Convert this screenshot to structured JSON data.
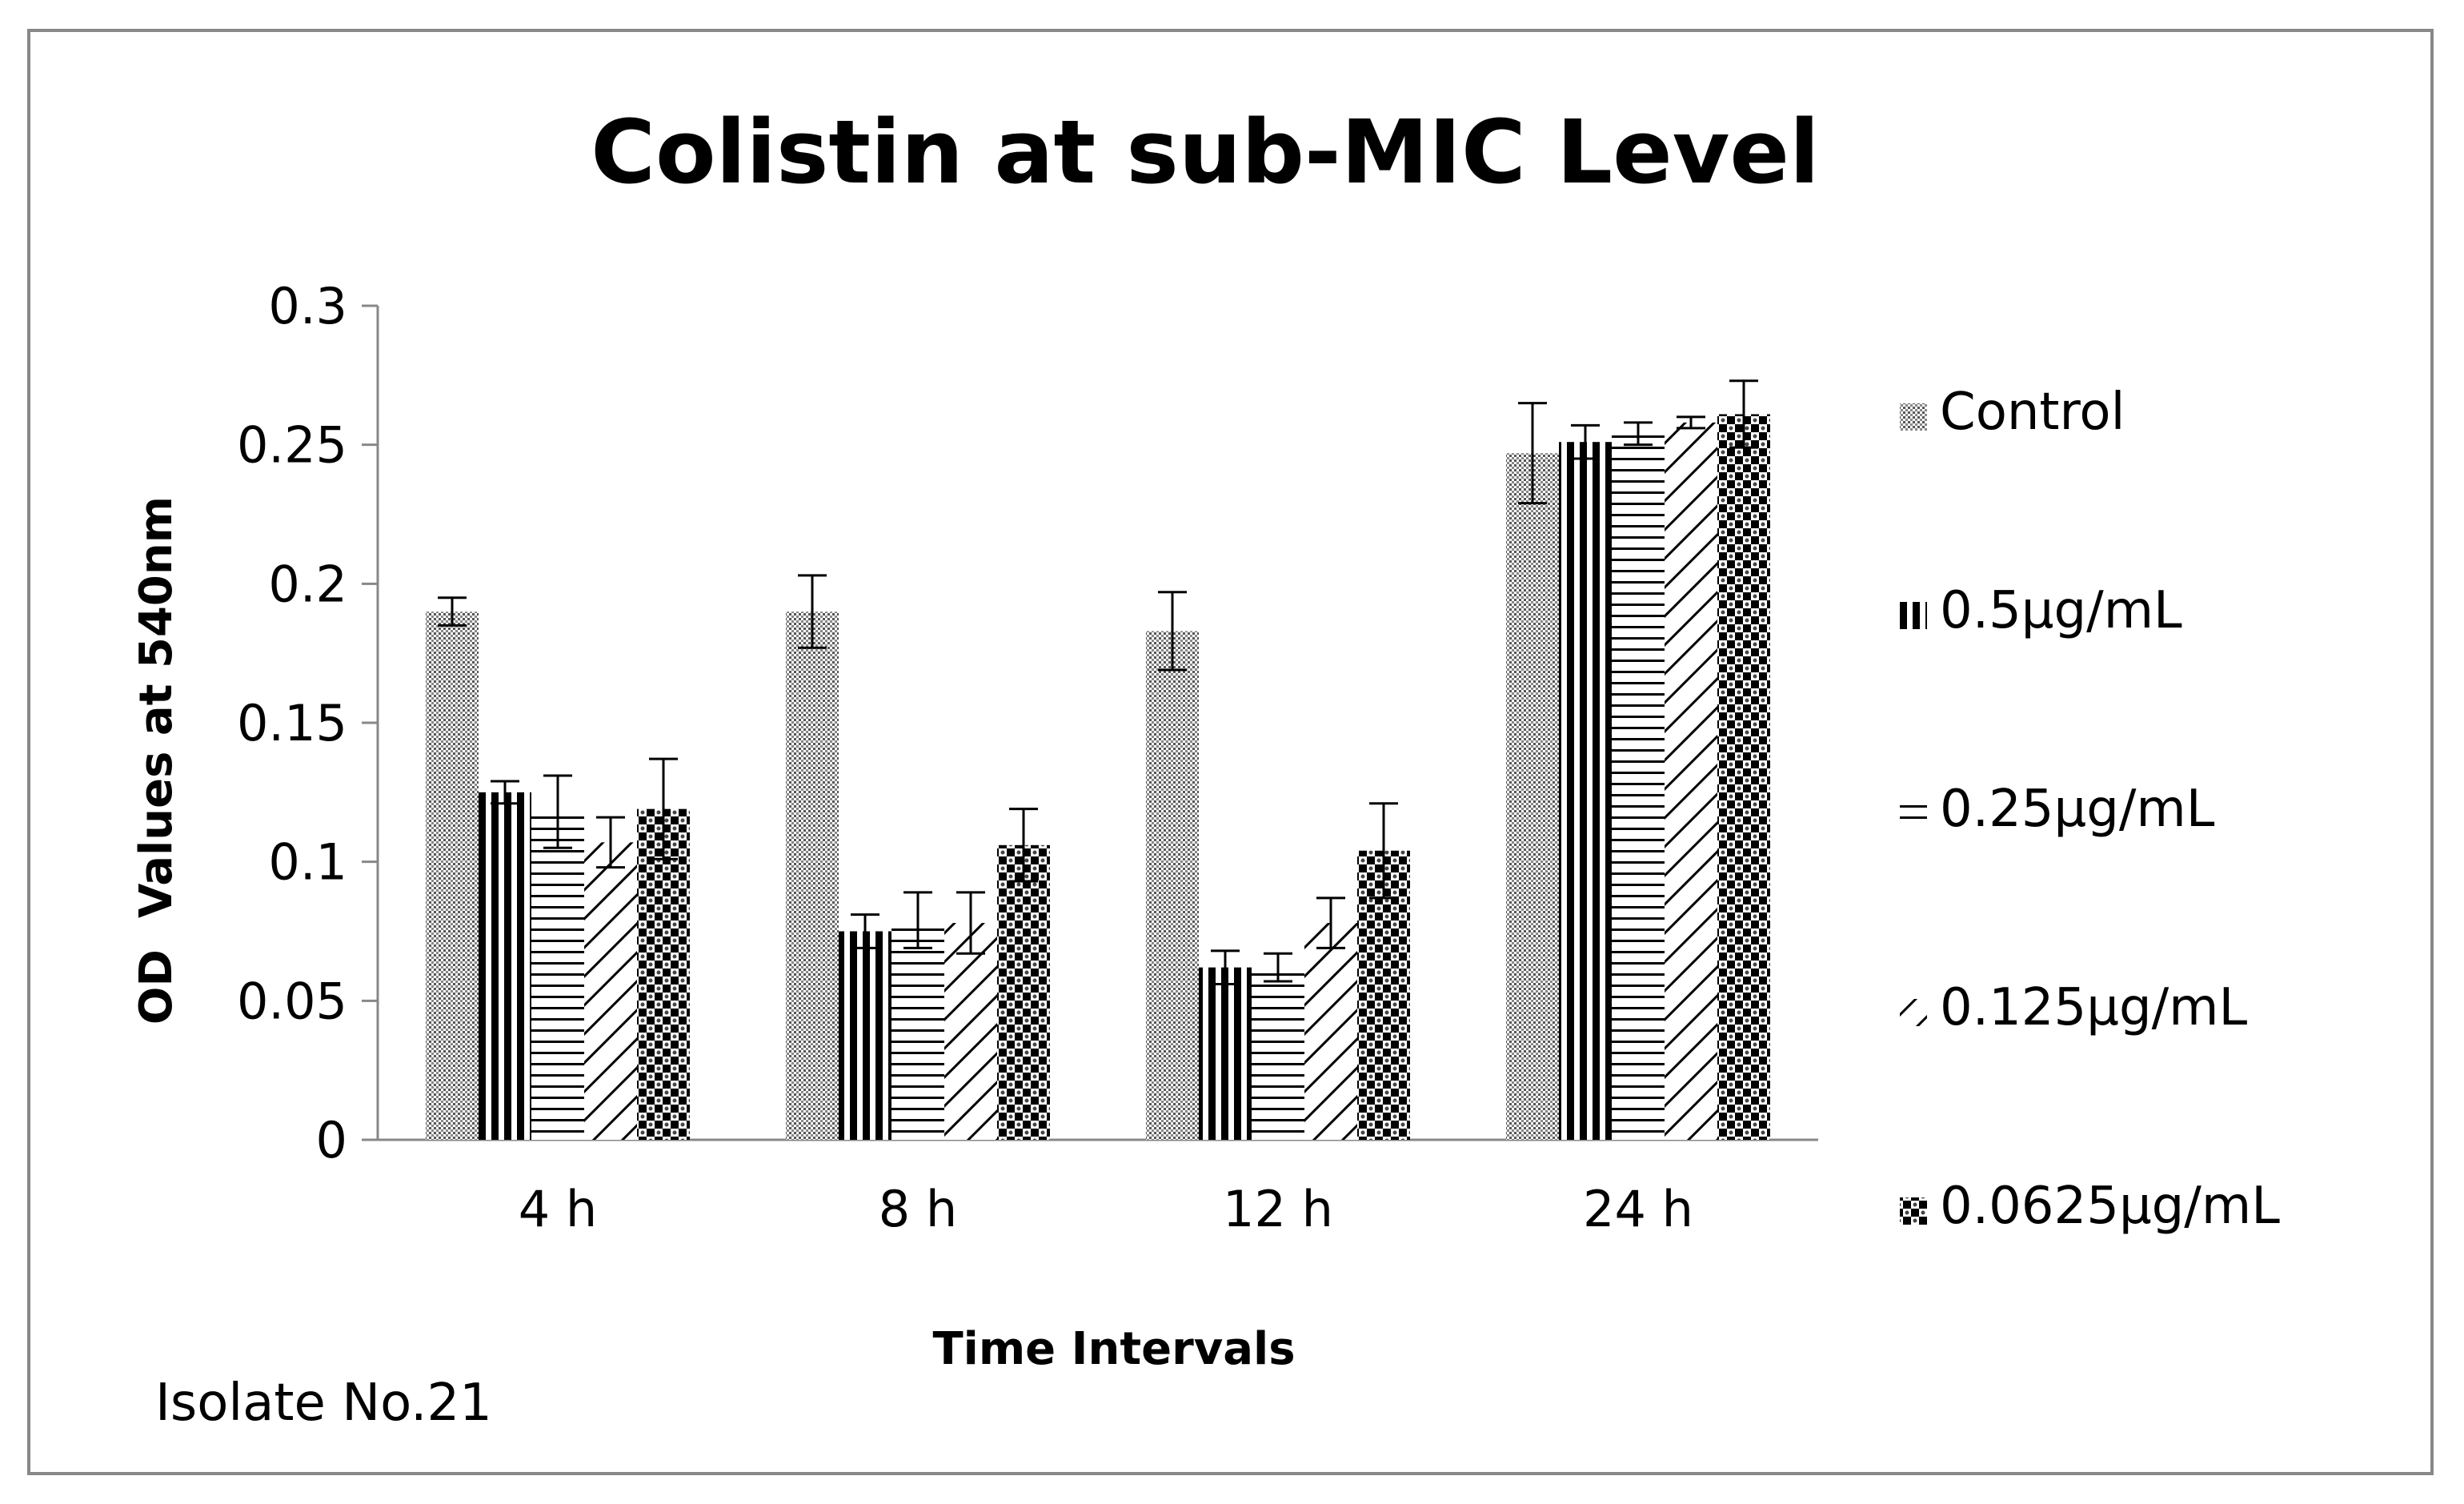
{
  "chart_data": {
    "type": "bar",
    "title": "Colistin at sub-MIC Level",
    "xlabel": "Time Intervals",
    "ylabel": "OD  Values at 540nm",
    "ylim": [
      0,
      0.3
    ],
    "yticks": [
      "0",
      "0.05",
      "0.1",
      "0.15",
      "0.2",
      "0.25",
      "0.3"
    ],
    "grid": false,
    "legend_position": "right",
    "categories": [
      "4 h",
      "8 h",
      "12 h",
      "24 h"
    ],
    "series": [
      {
        "name": "Control",
        "pattern": "dots",
        "values": [
          0.19,
          0.19,
          0.183,
          0.247
        ],
        "errors": [
          0.005,
          0.013,
          0.014,
          0.018
        ]
      },
      {
        "name": "0.5µg/mL",
        "pattern": "vertical-lines",
        "values": [
          0.125,
          0.075,
          0.062,
          0.251
        ],
        "errors": [
          0.004,
          0.006,
          0.006,
          0.006
        ]
      },
      {
        "name": "0.25µg/mL",
        "pattern": "horizontal-lines",
        "values": [
          0.118,
          0.079,
          0.062,
          0.254
        ],
        "errors": [
          0.013,
          0.01,
          0.005,
          0.004
        ]
      },
      {
        "name": "0.125µg/mL",
        "pattern": "diagonal-lines",
        "values": [
          0.107,
          0.078,
          0.078,
          0.258
        ],
        "errors": [
          0.009,
          0.011,
          0.009,
          0.002
        ]
      },
      {
        "name": "0.0625µg/mL",
        "pattern": "checker",
        "values": [
          0.119,
          0.106,
          0.104,
          0.261
        ],
        "errors": [
          0.018,
          0.013,
          0.017,
          0.012
        ]
      }
    ],
    "annotation": "Isolate No.21"
  }
}
